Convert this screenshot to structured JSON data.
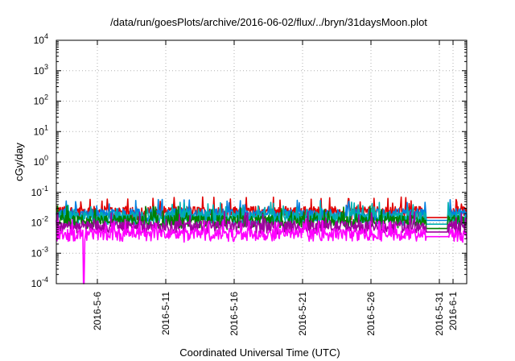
{
  "chart_data": {
    "type": "line",
    "title": "/data/run/goesPlots/archive/2016-06-02/flux/../bryn/31daysMoon.plot",
    "xlabel": "Coordinated Universal Time (UTC)",
    "ylabel": "cGy/day",
    "y_scale": "log",
    "ylim": [
      0.0001,
      10000
    ],
    "y_ticks": [
      {
        "base": "10",
        "exp": "-4",
        "value": 0.0001
      },
      {
        "base": "10",
        "exp": "-3",
        "value": 0.001
      },
      {
        "base": "10",
        "exp": "-2",
        "value": 0.01
      },
      {
        "base": "10",
        "exp": "-1",
        "value": 0.1
      },
      {
        "base": "10",
        "exp": "0",
        "value": 1
      },
      {
        "base": "10",
        "exp": "1",
        "value": 10
      },
      {
        "base": "10",
        "exp": "2",
        "value": 100
      },
      {
        "base": "10",
        "exp": "3",
        "value": 1000
      },
      {
        "base": "10",
        "exp": "4",
        "value": 10000
      }
    ],
    "xlim": [
      "2016-05-03",
      "2016-06-02"
    ],
    "x_ticks": [
      "2016-5-6",
      "2016-5-11",
      "2016-5-16",
      "2016-5-21",
      "2016-5-26",
      "2016-5-31",
      "2016-6-1"
    ],
    "grid": true,
    "legend": "none",
    "series_colors": [
      "#e00000",
      "#0080e0",
      "#00b0b0",
      "#008000",
      "#a000a0",
      "#ff00ff"
    ],
    "series_levels": [
      0.024,
      0.02,
      0.016,
      0.012,
      0.008,
      0.0045
    ],
    "gap_levels": [
      0.015,
      0.012,
      0.009,
      0.0065,
      0.005,
      0.0035
    ],
    "dip": {
      "date": "2016-05-05",
      "value": 0.0001
    }
  }
}
